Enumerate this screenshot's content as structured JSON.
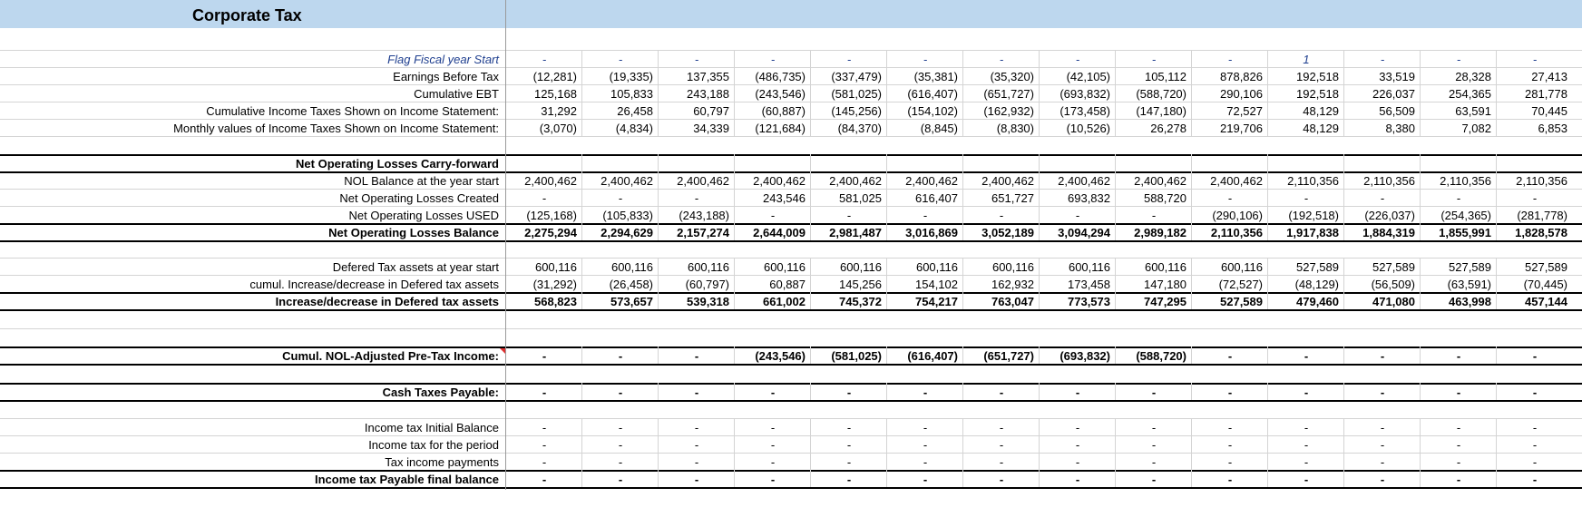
{
  "title": "Corporate Tax",
  "section1": [
    {
      "label": "Flag Fiscal year Start",
      "style": "it",
      "values": [
        "-",
        "-",
        "-",
        "-",
        "-",
        "-",
        "-",
        "-",
        "-",
        "-",
        "1",
        "-",
        "-",
        "-"
      ]
    },
    {
      "label": "Earnings Before Tax",
      "style": "",
      "values": [
        "(12,281)",
        "(19,335)",
        "137,355",
        "(486,735)",
        "(337,479)",
        "(35,381)",
        "(35,320)",
        "(42,105)",
        "105,112",
        "878,826",
        "192,518",
        "33,519",
        "28,328",
        "27,413"
      ]
    },
    {
      "label": "Cumulative EBT",
      "style": "",
      "values": [
        "125,168",
        "105,833",
        "243,188",
        "(243,546)",
        "(581,025)",
        "(616,407)",
        "(651,727)",
        "(693,832)",
        "(588,720)",
        "290,106",
        "192,518",
        "226,037",
        "254,365",
        "281,778"
      ]
    },
    {
      "label": "Cumulative Income Taxes Shown on Income Statement:",
      "style": "",
      "values": [
        "31,292",
        "26,458",
        "60,797",
        "(60,887)",
        "(145,256)",
        "(154,102)",
        "(162,932)",
        "(173,458)",
        "(147,180)",
        "72,527",
        "48,129",
        "56,509",
        "63,591",
        "70,445"
      ]
    },
    {
      "label": "Monthly values of Income Taxes Shown on Income Statement:",
      "style": "",
      "values": [
        "(3,070)",
        "(4,834)",
        "34,339",
        "(121,684)",
        "(84,370)",
        "(8,845)",
        "(8,830)",
        "(10,526)",
        "26,278",
        "219,706",
        "48,129",
        "8,380",
        "7,082",
        "6,853"
      ]
    }
  ],
  "nol_header": "Net Operating Losses Carry-forward",
  "section2": [
    {
      "label": "NOL Balance at the year start",
      "style": "",
      "values": [
        "2,400,462",
        "2,400,462",
        "2,400,462",
        "2,400,462",
        "2,400,462",
        "2,400,462",
        "2,400,462",
        "2,400,462",
        "2,400,462",
        "2,400,462",
        "2,110,356",
        "2,110,356",
        "2,110,356",
        "2,110,356"
      ]
    },
    {
      "label": "Net Operating Losses Created",
      "style": "",
      "values": [
        "-",
        "-",
        "-",
        "243,546",
        "581,025",
        "616,407",
        "651,727",
        "693,832",
        "588,720",
        "-",
        "-",
        "-",
        "-",
        "-"
      ]
    },
    {
      "label": "Net Operating Losses USED",
      "style": "",
      "values": [
        "(125,168)",
        "(105,833)",
        "(243,188)",
        "-",
        "-",
        "-",
        "-",
        "-",
        "-",
        "(290,106)",
        "(192,518)",
        "(226,037)",
        "(254,365)",
        "(281,778)"
      ]
    },
    {
      "label": "Net Operating Losses Balance",
      "style": "b",
      "values": [
        "2,275,294",
        "2,294,629",
        "2,157,274",
        "2,644,009",
        "2,981,487",
        "3,016,869",
        "3,052,189",
        "3,094,294",
        "2,989,182",
        "2,110,356",
        "1,917,838",
        "1,884,319",
        "1,855,991",
        "1,828,578"
      ]
    }
  ],
  "section3": [
    {
      "label": "Defered Tax assets at year start",
      "style": "",
      "values": [
        "600,116",
        "600,116",
        "600,116",
        "600,116",
        "600,116",
        "600,116",
        "600,116",
        "600,116",
        "600,116",
        "600,116",
        "527,589",
        "527,589",
        "527,589",
        "527,589"
      ]
    },
    {
      "label": "cumul. Increase/decrease in Defered tax assets",
      "style": "",
      "values": [
        "(31,292)",
        "(26,458)",
        "(60,797)",
        "60,887",
        "145,256",
        "154,102",
        "162,932",
        "173,458",
        "147,180",
        "(72,527)",
        "(48,129)",
        "(56,509)",
        "(63,591)",
        "(70,445)"
      ]
    },
    {
      "label": "Increase/decrease in Defered tax assets",
      "style": "b",
      "values": [
        "568,823",
        "573,657",
        "539,318",
        "661,002",
        "745,372",
        "754,217",
        "763,047",
        "773,573",
        "747,295",
        "527,589",
        "479,460",
        "471,080",
        "463,998",
        "457,144"
      ]
    }
  ],
  "cumul_nol": {
    "label": "Cumul. NOL-Adjusted Pre-Tax Income:",
    "values": [
      "-",
      "-",
      "-",
      "(243,546)",
      "(581,025)",
      "(616,407)",
      "(651,727)",
      "(693,832)",
      "(588,720)",
      "-",
      "-",
      "-",
      "-",
      "-"
    ]
  },
  "cash_taxes": {
    "label": "Cash Taxes Payable:",
    "values": [
      "-",
      "-",
      "-",
      "-",
      "-",
      "-",
      "-",
      "-",
      "-",
      "-",
      "-",
      "-",
      "-",
      "-"
    ]
  },
  "section4": [
    {
      "label": "Income tax Initial Balance",
      "style": "",
      "values": [
        "-",
        "-",
        "-",
        "-",
        "-",
        "-",
        "-",
        "-",
        "-",
        "-",
        "-",
        "-",
        "-",
        "-"
      ]
    },
    {
      "label": "Income tax for the period",
      "style": "",
      "values": [
        "-",
        "-",
        "-",
        "-",
        "-",
        "-",
        "-",
        "-",
        "-",
        "-",
        "-",
        "-",
        "-",
        "-"
      ]
    },
    {
      "label": "Tax income payments",
      "style": "",
      "values": [
        "-",
        "-",
        "-",
        "-",
        "-",
        "-",
        "-",
        "-",
        "-",
        "-",
        "-",
        "-",
        "-",
        "-"
      ]
    },
    {
      "label": "Income tax Payable final balance",
      "style": "b",
      "values": [
        "-",
        "-",
        "-",
        "-",
        "-",
        "-",
        "-",
        "-",
        "-",
        "-",
        "-",
        "-",
        "-",
        "-"
      ]
    }
  ]
}
